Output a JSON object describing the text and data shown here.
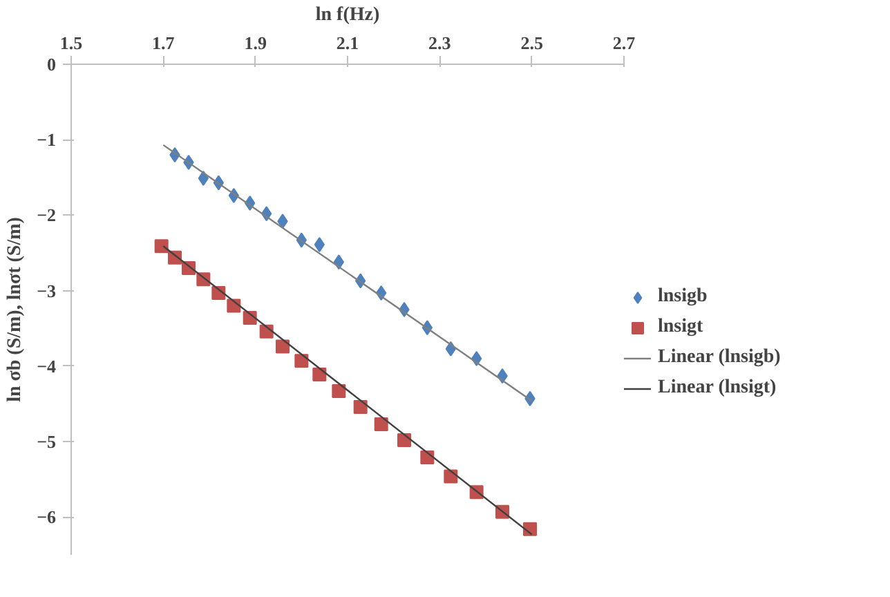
{
  "chart_data": {
    "type": "scatter",
    "xlabel": "ln f(Hz)",
    "ylabel": "ln σb (S/m), lnσt (S/m)",
    "xlim": [
      1.5,
      2.7
    ],
    "xticks": [
      1.5,
      1.7,
      1.9,
      2.1,
      2.3,
      2.5,
      2.7
    ],
    "ylim": [
      -6.5,
      0
    ],
    "yticks": [
      0,
      -1,
      -2,
      -3,
      -4,
      -5,
      -6
    ],
    "grid": false,
    "legend": "right",
    "series": [
      {
        "name": "lnsigb",
        "marker": "diamond",
        "color": "#4f81bd",
        "x": [
          1.725,
          1.755,
          1.787,
          1.82,
          1.853,
          1.888,
          1.924,
          1.959,
          2.0,
          2.039,
          2.081,
          2.128,
          2.173,
          2.223,
          2.273,
          2.324,
          2.38,
          2.436,
          2.496
        ],
        "values": [
          -1.2,
          -1.3,
          -1.51,
          -1.57,
          -1.74,
          -1.84,
          -1.98,
          -2.08,
          -2.33,
          -2.39,
          -2.62,
          -2.87,
          -3.03,
          -3.25,
          -3.49,
          -3.77,
          -3.9,
          -4.13,
          -4.43
        ]
      },
      {
        "name": "lnsigt",
        "marker": "square",
        "color": "#c0504d",
        "x": [
          1.696,
          1.725,
          1.755,
          1.787,
          1.82,
          1.853,
          1.888,
          1.924,
          1.959,
          2.0,
          2.039,
          2.081,
          2.128,
          2.173,
          2.223,
          2.273,
          2.324,
          2.38,
          2.436,
          2.496
        ],
        "values": [
          -2.41,
          -2.56,
          -2.7,
          -2.85,
          -3.03,
          -3.2,
          -3.36,
          -3.54,
          -3.74,
          -3.93,
          -4.11,
          -4.33,
          -4.54,
          -4.77,
          -4.98,
          -5.21,
          -5.46,
          -5.67,
          -5.93,
          -6.16
        ]
      },
      {
        "name": "Linear (lnsigb)",
        "type": "line",
        "line_style": "solid",
        "color": "#7f7f7f",
        "x": [
          1.7,
          2.5
        ],
        "values": [
          -1.07,
          -4.46
        ]
      },
      {
        "name": "Linear (lnsigt)",
        "type": "line",
        "line_style": "solid",
        "color": "#404040",
        "x": [
          1.7,
          2.5
        ],
        "values": [
          -2.41,
          -6.23
        ]
      }
    ]
  }
}
